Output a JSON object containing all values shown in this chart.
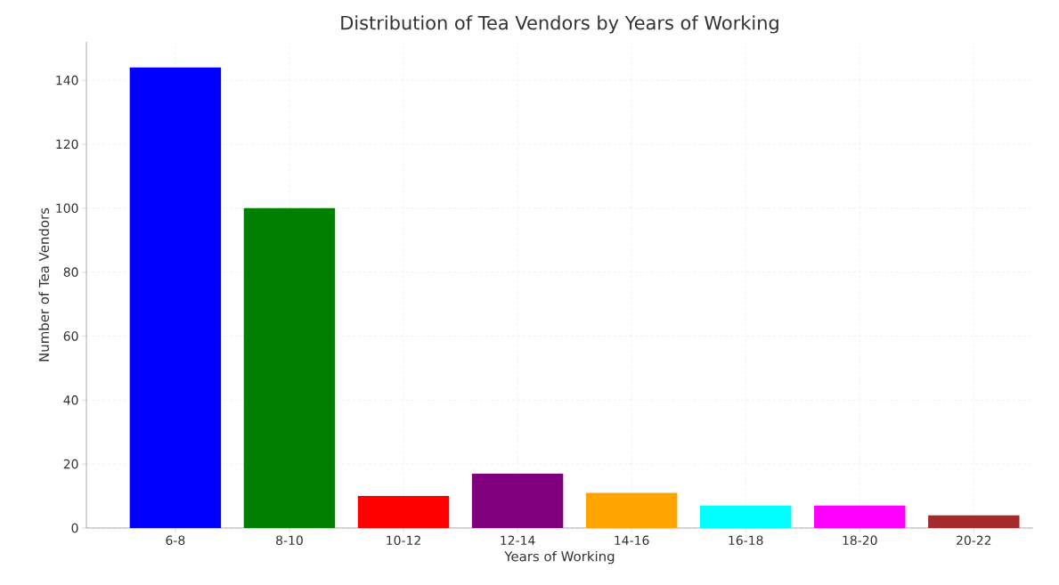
{
  "chart_data": {
    "type": "bar",
    "title": "Distribution of Tea Vendors by Years of Working",
    "xlabel": "Years of Working",
    "ylabel": "Number of Tea Vendors",
    "categories": [
      "6-8",
      "8-10",
      "10-12",
      "12-14",
      "14-16",
      "16-18",
      "18-20",
      "20-22"
    ],
    "values": [
      144,
      100,
      10,
      17,
      11,
      7,
      7,
      4
    ],
    "colors": [
      "#0000ff",
      "#008000",
      "#ff0000",
      "#800080",
      "#ffa500",
      "#00ffff",
      "#ff00ff",
      "#a52a2a"
    ],
    "ylim": [
      0,
      152
    ],
    "yticks": [
      0,
      20,
      40,
      60,
      80,
      100,
      120,
      140
    ],
    "grid": true
  }
}
